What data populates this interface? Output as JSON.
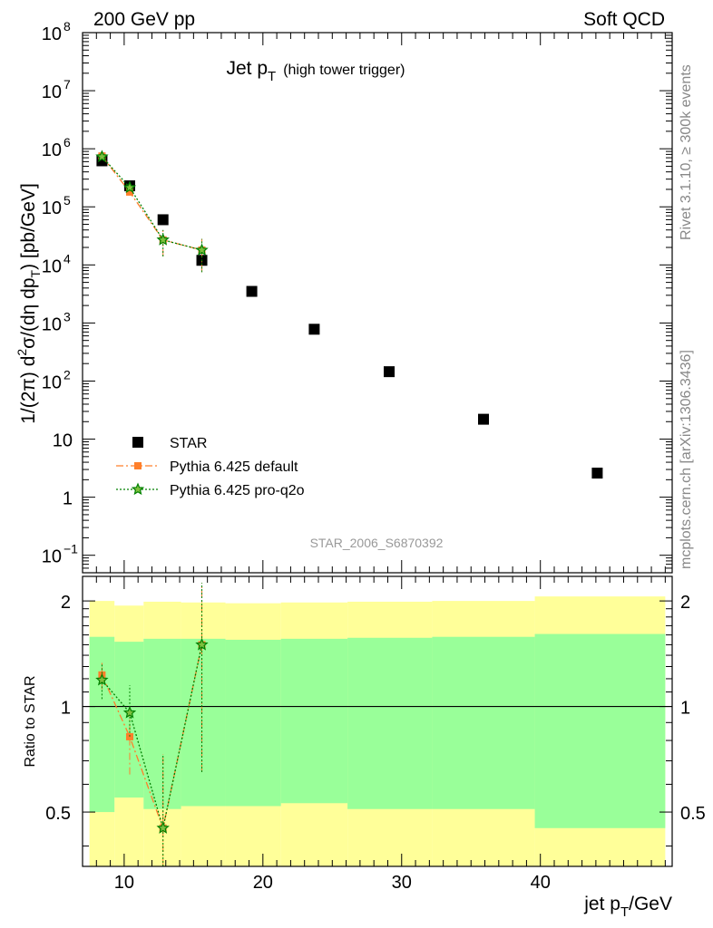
{
  "header": {
    "left": "200 GeV pp",
    "right": "Soft QCD"
  },
  "side_labels": {
    "rivet": "Rivet 3.1.10, ≥ 300k events",
    "mcplots": "mcplots.cern.ch [arXiv:1306.3436]"
  },
  "chart_data": [
    {
      "type": "scatter",
      "panel": "main",
      "title": "Jet p",
      "title_sub": "T",
      "title_note": "(high tower trigger)",
      "analysis_label": "STAR_2006_S6870392",
      "ylabel": "1/(2π) d²σ/(dη dp_T) [pb/GeV]",
      "yscale": "log",
      "ylim": [
        0.05,
        100000000
      ],
      "xlim": [
        7,
        49.5
      ],
      "yticks": [
        {
          "value": 0.1,
          "label": "10",
          "exp": "−1"
        },
        {
          "value": 1,
          "label": "1",
          "exp": ""
        },
        {
          "value": 10,
          "label": "10",
          "exp": ""
        },
        {
          "value": 100,
          "label": "10",
          "exp": "2"
        },
        {
          "value": 1000,
          "label": "10",
          "exp": "3"
        },
        {
          "value": 10000,
          "label": "10",
          "exp": "4"
        },
        {
          "value": 100000,
          "label": "10",
          "exp": "5"
        },
        {
          "value": 1000000,
          "label": "10",
          "exp": "6"
        },
        {
          "value": 10000000,
          "label": "10",
          "exp": "7"
        },
        {
          "value": 100000000,
          "label": "10",
          "exp": "8"
        }
      ],
      "legend_position": "lower-left",
      "series": [
        {
          "name": "STAR",
          "color": "#000000",
          "marker": "square",
          "x": [
            8.4,
            10.4,
            12.8,
            15.6,
            19.2,
            23.7,
            29.1,
            35.9,
            44.1
          ],
          "y": [
            620000,
            230000,
            60000,
            12000,
            3500,
            780,
            145,
            22,
            2.6
          ]
        },
        {
          "name": "Pythia 6.425 default",
          "color": "#ff7f2a",
          "marker": "square-small",
          "dash": "dashdot",
          "x": [
            8.4,
            10.4,
            12.8,
            15.6
          ],
          "y": [
            750000,
            180000,
            27000,
            18000
          ],
          "yerr": [
            [
              700000,
              810000
            ],
            [
              170000,
              195000
            ],
            [
              14000,
              40000
            ],
            [
              7500,
              28000
            ]
          ]
        },
        {
          "name": "Pythia 6.425 pro-q2o",
          "color": "#008000",
          "marker": "star",
          "dash": "dotted",
          "x": [
            8.4,
            10.4,
            12.8,
            15.6
          ],
          "y": [
            730000,
            215000,
            27000,
            18000
          ],
          "yerr": [
            [
              690000,
              780000
            ],
            [
              200000,
              235000
            ],
            [
              14000,
              40000
            ],
            [
              7500,
              28000
            ]
          ]
        }
      ]
    },
    {
      "type": "scatter",
      "panel": "ratio",
      "ylabel": "Ratio to STAR",
      "xlabel": "jet p_T/GeV",
      "yscale": "log",
      "ylim": [
        0.35,
        2.35
      ],
      "xlim": [
        7,
        49.5
      ],
      "xticks": [
        10,
        20,
        30,
        40
      ],
      "yticks": [
        {
          "value": 0.5,
          "label": "0.5"
        },
        {
          "value": 1,
          "label": "1"
        },
        {
          "value": 2,
          "label": "2"
        }
      ],
      "bands": {
        "bins": [
          7.5,
          9.3,
          11.4,
          14.1,
          17.3,
          21.3,
          26.1,
          32.2,
          39.6,
          49.0
        ],
        "green": [
          [
            0.5,
            1.58
          ],
          [
            0.55,
            1.53
          ],
          [
            0.51,
            1.56
          ],
          [
            0.52,
            1.56
          ],
          [
            0.52,
            1.55
          ],
          [
            0.53,
            1.56
          ],
          [
            0.51,
            1.57
          ],
          [
            0.51,
            1.58
          ],
          [
            0.45,
            1.61
          ]
        ],
        "yellow": [
          [
            0.35,
            2.0
          ],
          [
            0.35,
            1.94
          ],
          [
            0.35,
            1.99
          ],
          [
            0.35,
            1.98
          ],
          [
            0.35,
            1.97
          ],
          [
            0.35,
            1.98
          ],
          [
            0.35,
            1.99
          ],
          [
            0.35,
            2.0
          ],
          [
            0.35,
            2.06
          ]
        ],
        "green_color": "#99ff99",
        "yellow_color": "#ffff99"
      },
      "series": [
        {
          "name": "Pythia 6.425 default",
          "color": "#ff7f2a",
          "marker": "square-small",
          "dash": "dashdot",
          "x": [
            8.4,
            10.4,
            12.8,
            15.6
          ],
          "y": [
            1.23,
            0.82,
            0.45,
            1.5
          ],
          "yerr": [
            [
              1.12,
              1.35
            ],
            [
              0.64,
              0.99
            ],
            [
              0.35,
              0.73
            ],
            [
              0.65,
              2.25
            ]
          ]
        },
        {
          "name": "Pythia 6.425 pro-q2o",
          "color": "#008000",
          "marker": "star",
          "dash": "dotted",
          "x": [
            8.4,
            10.4,
            12.8,
            15.6
          ],
          "y": [
            1.19,
            0.96,
            0.45,
            1.5
          ],
          "yerr": [
            [
              1.05,
              1.32
            ],
            [
              0.82,
              1.15
            ],
            [
              0.35,
              0.73
            ],
            [
              0.65,
              2.25
            ]
          ]
        }
      ]
    }
  ]
}
